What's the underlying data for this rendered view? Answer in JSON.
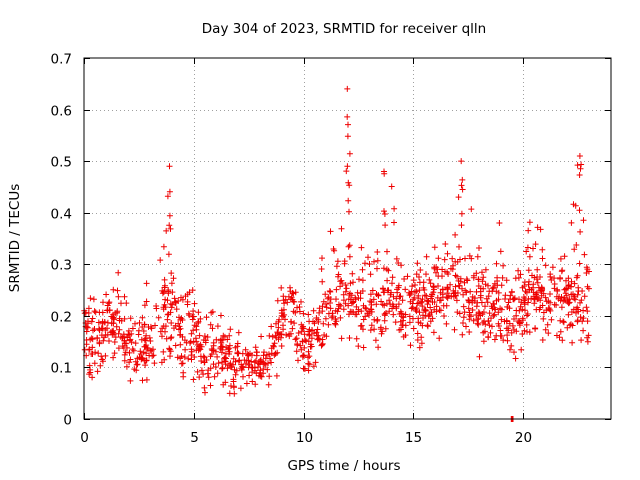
{
  "chart_data": {
    "type": "scatter",
    "title": "Day 304 of 2023, SRMTID for receiver qlln",
    "xlabel": "GPS time / hours",
    "ylabel": "SRMTID / TECUs",
    "xlim": [
      0,
      24
    ],
    "ylim": [
      0,
      0.7
    ],
    "xticks": [
      0,
      5,
      10,
      15,
      20
    ],
    "xtick_labels": [
      "0",
      "5",
      "10",
      "15",
      "20"
    ],
    "yticks": [
      0,
      0.1,
      0.2,
      0.3,
      0.4,
      0.5,
      0.6,
      0.7
    ],
    "ytick_labels": [
      "0",
      "0.1",
      "0.2",
      "0.3",
      "0.4",
      "0.5",
      "0.6",
      "0.7"
    ],
    "grid": true,
    "marker": "+",
    "color": "#ee0000",
    "series": [
      {
        "name": "SRMTID",
        "envelope": {
          "description": "approximate band of data points read from the plot (hours, median, lower, upper)",
          "x": [
            0.0,
            0.5,
            1.0,
            1.5,
            2.0,
            2.5,
            3.0,
            3.5,
            4.0,
            4.5,
            5.0,
            5.5,
            6.0,
            6.5,
            7.0,
            7.5,
            8.0,
            8.5,
            9.0,
            9.5,
            10.0,
            10.5,
            11.0,
            11.5,
            12.0,
            12.5,
            13.0,
            13.5,
            14.0,
            14.5,
            15.0,
            15.5,
            16.0,
            16.5,
            17.0,
            17.5,
            18.0,
            18.5,
            19.0,
            19.5,
            20.0,
            20.5,
            21.0,
            21.5,
            22.0,
            22.5,
            23.0
          ],
          "median": [
            0.16,
            0.17,
            0.18,
            0.19,
            0.15,
            0.13,
            0.14,
            0.2,
            0.21,
            0.16,
            0.15,
            0.14,
            0.14,
            0.12,
            0.11,
            0.11,
            0.1,
            0.11,
            0.19,
            0.21,
            0.13,
            0.16,
            0.2,
            0.22,
            0.26,
            0.23,
            0.21,
            0.22,
            0.24,
            0.21,
            0.22,
            0.22,
            0.24,
            0.25,
            0.26,
            0.24,
            0.22,
            0.21,
            0.23,
            0.2,
            0.22,
            0.26,
            0.24,
            0.22,
            0.24,
            0.23,
            0.22
          ],
          "low": [
            0.07,
            0.08,
            0.1,
            0.12,
            0.07,
            0.05,
            0.06,
            0.1,
            0.09,
            0.07,
            0.06,
            0.05,
            0.05,
            0.05,
            0.04,
            0.05,
            0.05,
            0.06,
            0.1,
            0.12,
            0.07,
            0.09,
            0.13,
            0.14,
            0.16,
            0.14,
            0.12,
            0.13,
            0.15,
            0.13,
            0.14,
            0.13,
            0.15,
            0.16,
            0.16,
            0.14,
            0.12,
            0.12,
            0.13,
            0.11,
            0.12,
            0.16,
            0.15,
            0.14,
            0.15,
            0.14,
            0.12
          ],
          "high": [
            0.23,
            0.24,
            0.26,
            0.29,
            0.24,
            0.2,
            0.3,
            0.33,
            0.49,
            0.26,
            0.25,
            0.22,
            0.22,
            0.19,
            0.18,
            0.18,
            0.17,
            0.18,
            0.27,
            0.29,
            0.22,
            0.27,
            0.36,
            0.38,
            0.64,
            0.34,
            0.33,
            0.33,
            0.48,
            0.32,
            0.32,
            0.33,
            0.34,
            0.36,
            0.44,
            0.49,
            0.33,
            0.31,
            0.41,
            0.3,
            0.33,
            0.44,
            0.36,
            0.32,
            0.36,
            0.51,
            0.3
          ]
        },
        "point_count": 1400,
        "notable_points": [
          {
            "x": 3.9,
            "y": 0.49
          },
          {
            "x": 12.0,
            "y": 0.64
          },
          {
            "x": 13.7,
            "y": 0.48
          },
          {
            "x": 17.2,
            "y": 0.5
          },
          {
            "x": 22.6,
            "y": 0.51
          },
          {
            "x": 19.5,
            "y": 0.0
          }
        ]
      }
    ]
  }
}
